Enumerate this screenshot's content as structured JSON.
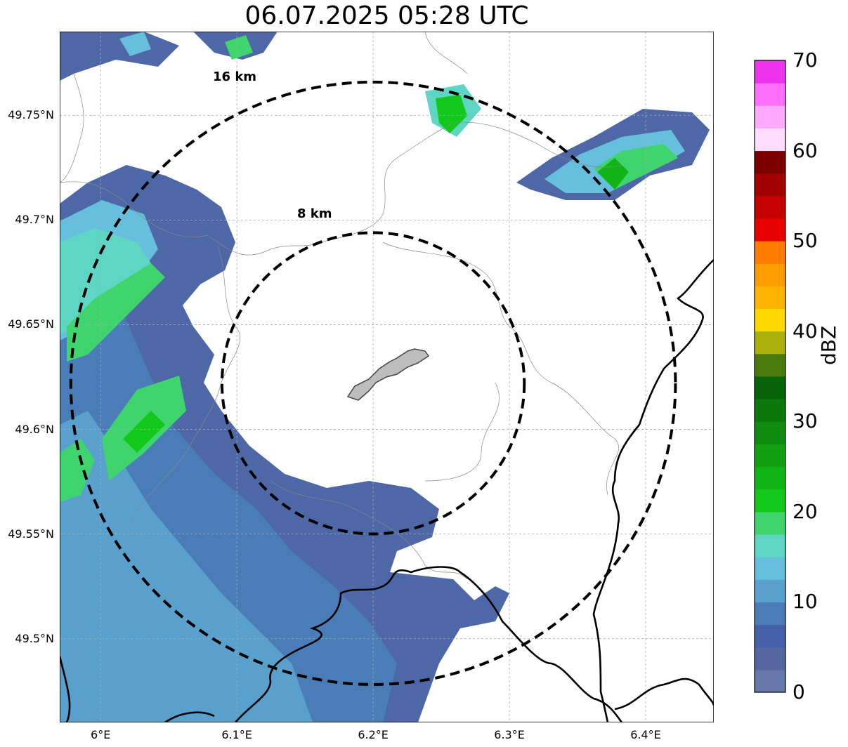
{
  "title": "06.07.2025 05:28 UTC",
  "map": {
    "extent": {
      "lon": [
        5.97,
        6.45
      ],
      "lat": [
        49.46,
        49.79
      ]
    },
    "center": {
      "lon": 6.2,
      "lat": 49.622
    },
    "range_rings": [
      {
        "radius_km": 8,
        "label": "8 km"
      },
      {
        "radius_km": 16,
        "label": "16 km"
      }
    ],
    "grid": true,
    "lat_ticks": [
      {
        "value": 49.75,
        "label": "49.75°N"
      },
      {
        "value": 49.7,
        "label": "49.7°N"
      },
      {
        "value": 49.65,
        "label": "49.65°N"
      },
      {
        "value": 49.6,
        "label": "49.6°N"
      },
      {
        "value": 49.55,
        "label": "49.55°N"
      },
      {
        "value": 49.5,
        "label": "49.5°N"
      }
    ],
    "lon_ticks": [
      {
        "value": 6.0,
        "label": "6°E"
      },
      {
        "value": 6.1,
        "label": "6.1°E"
      },
      {
        "value": 6.2,
        "label": "6.2°E"
      },
      {
        "value": 6.3,
        "label": "6.3°E"
      },
      {
        "value": 6.4,
        "label": "6.4°E"
      }
    ]
  },
  "colorbar": {
    "label": "dBZ",
    "min": 0,
    "max": 70,
    "ticks": [
      "0",
      "10",
      "20",
      "30",
      "40",
      "50",
      "60",
      "70"
    ],
    "colors": [
      "#6677aa",
      "#5566a0",
      "#4460a8",
      "#4a7db8",
      "#5aa0cc",
      "#66c0dd",
      "#5fd6c4",
      "#3fd46e",
      "#12c81a",
      "#10b414",
      "#10a010",
      "#0e8c0e",
      "#0a780a",
      "#086408",
      "#4a7a0a",
      "#aab00a",
      "#ffd800",
      "#ffb400",
      "#ff9c00",
      "#ff7c00",
      "#e60000",
      "#c40000",
      "#a00000",
      "#7c0000",
      "#ffddff",
      "#ffaaff",
      "#ff70ff",
      "#ee33ee"
    ]
  }
}
